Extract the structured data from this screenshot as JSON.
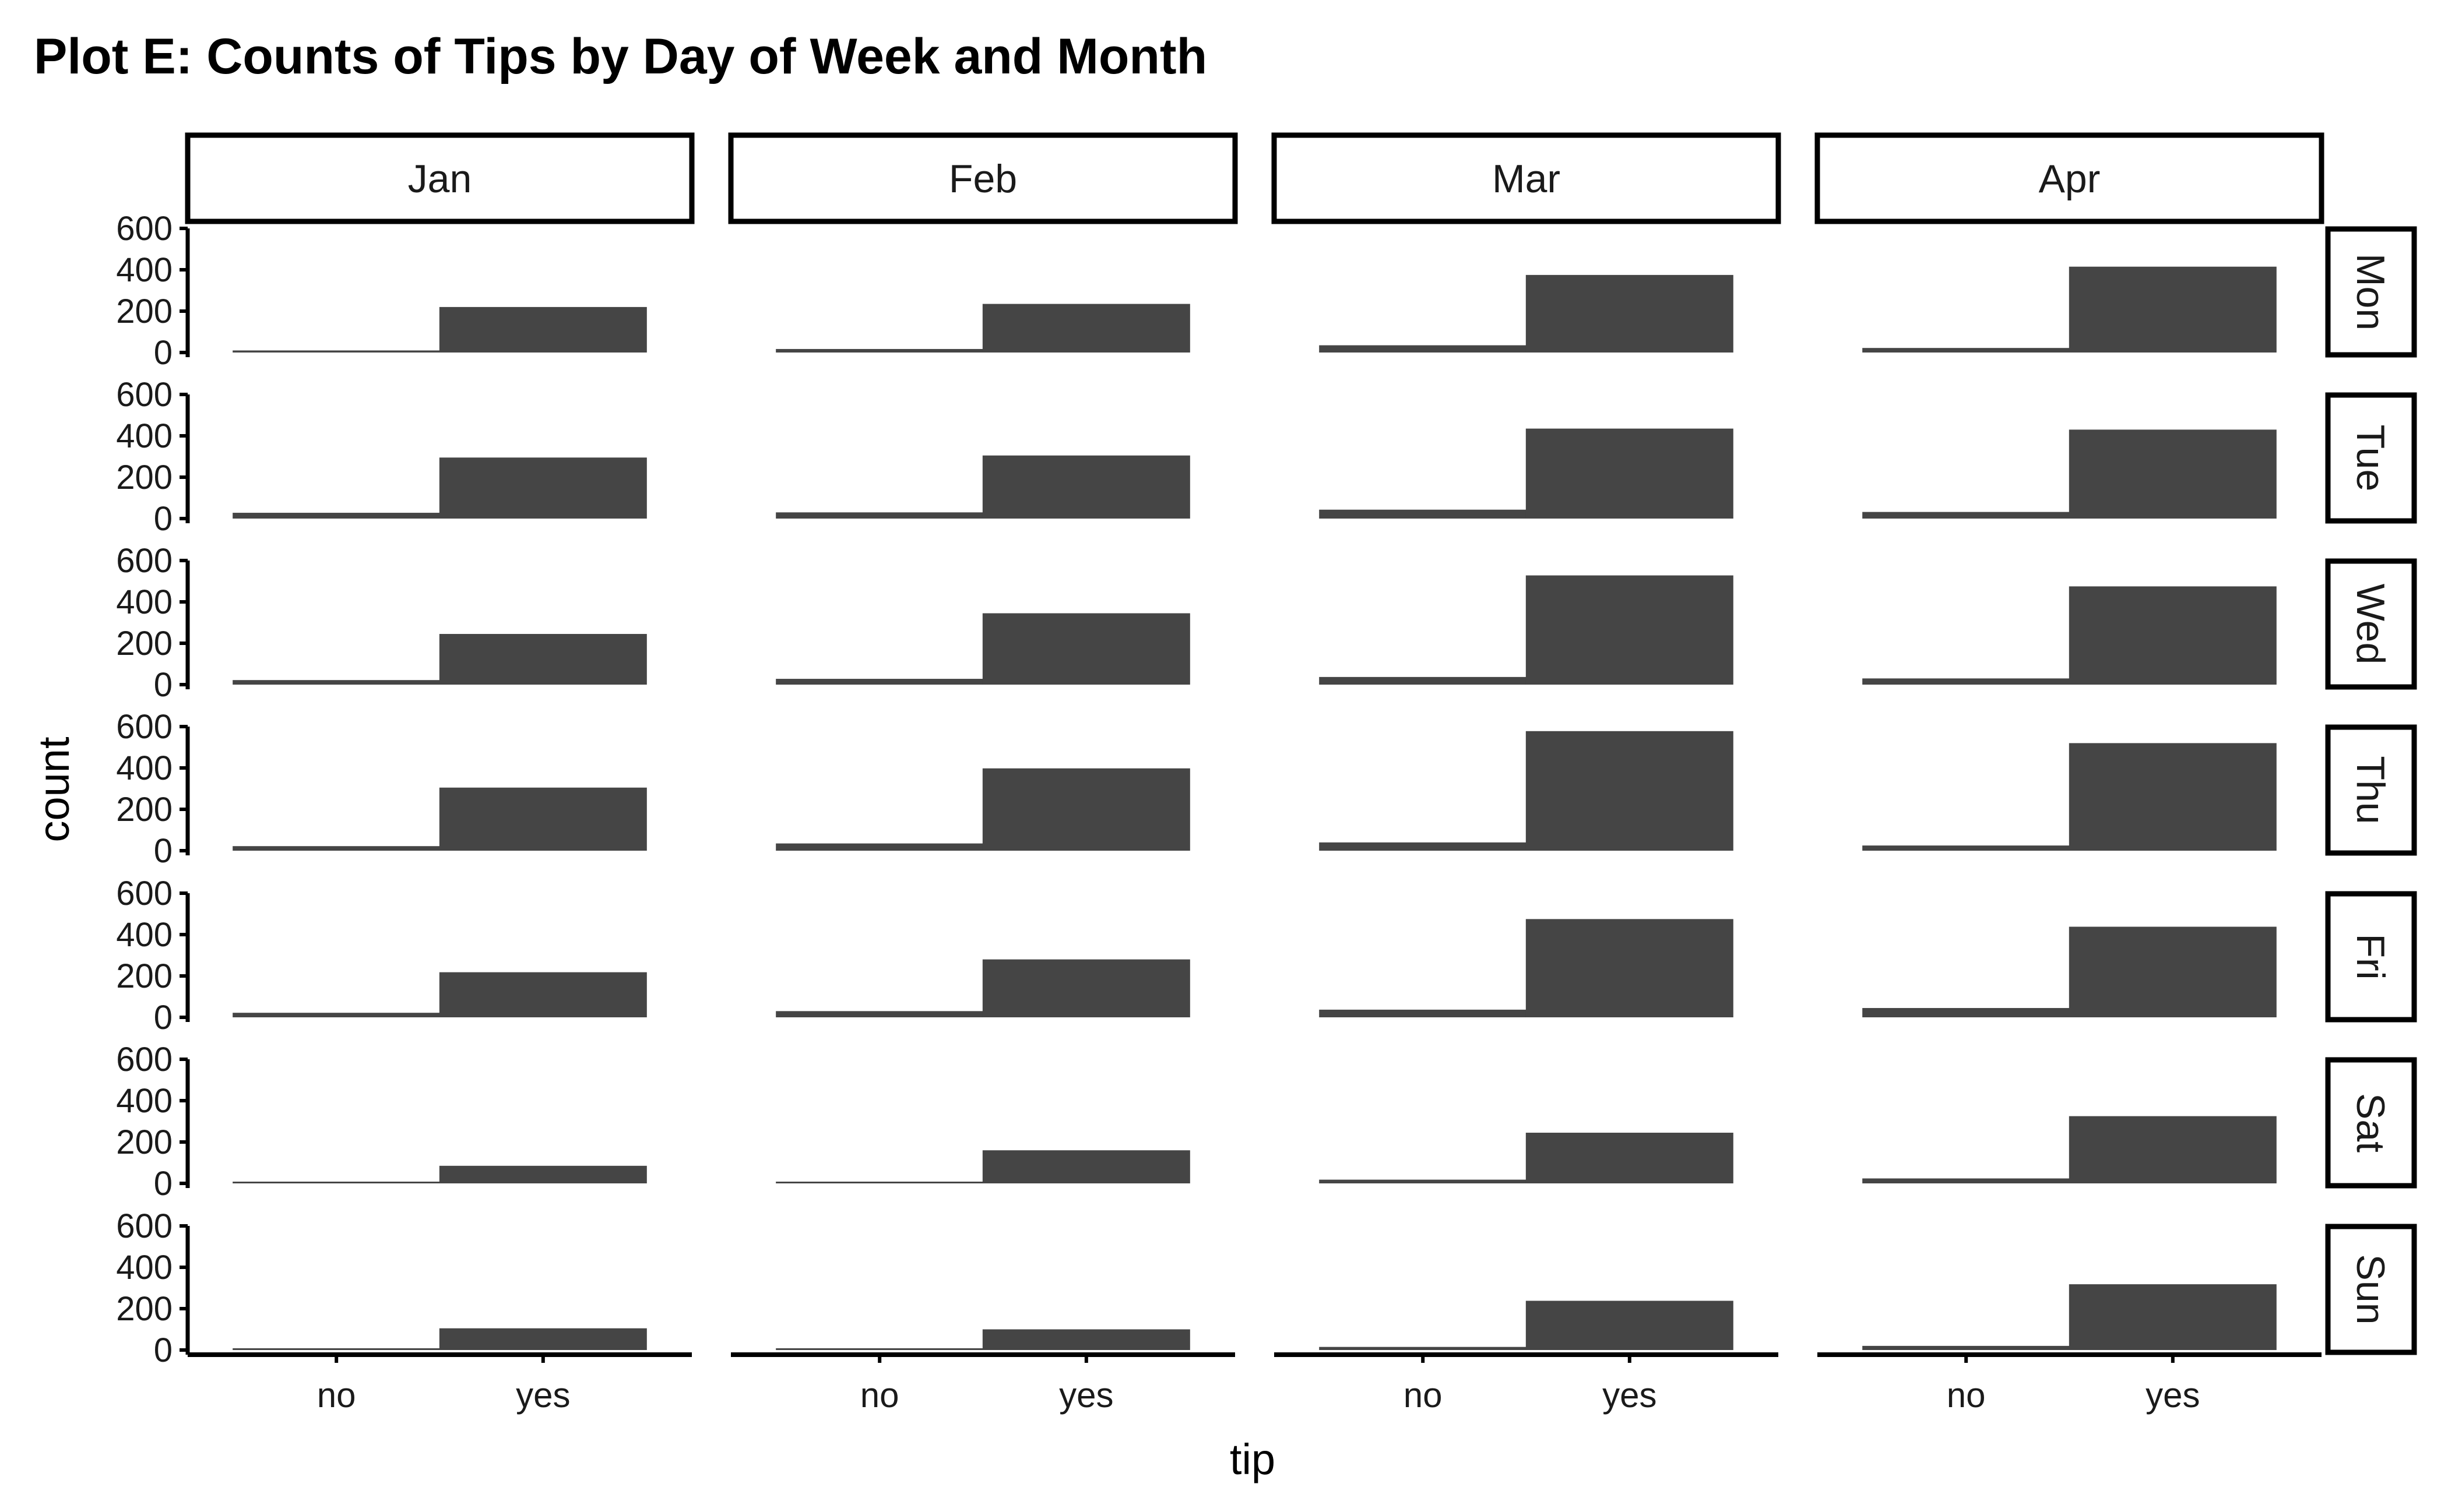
{
  "chart_data": {
    "type": "bar",
    "title": "Plot E: Counts of Tips by Day of Week and Month",
    "xlabel": "tip",
    "ylabel": "count",
    "categories": [
      "no",
      "yes"
    ],
    "ylim": [
      0,
      600
    ],
    "yticks": [
      0,
      200,
      400,
      600
    ],
    "months": [
      "Jan",
      "Feb",
      "Mar",
      "Apr"
    ],
    "days": [
      "Mon",
      "Tue",
      "Wed",
      "Thu",
      "Fri",
      "Sat",
      "Sun"
    ],
    "bar_color": "#454545",
    "grid": false,
    "panels": [
      {
        "month": "Jan",
        "day": "Mon",
        "values": [
          10,
          220
        ]
      },
      {
        "month": "Feb",
        "day": "Mon",
        "values": [
          17,
          235
        ]
      },
      {
        "month": "Mar",
        "day": "Mon",
        "values": [
          35,
          375
        ]
      },
      {
        "month": "Apr",
        "day": "Mon",
        "values": [
          22,
          415
        ]
      },
      {
        "month": "Jan",
        "day": "Tue",
        "values": [
          28,
          295
        ]
      },
      {
        "month": "Feb",
        "day": "Tue",
        "values": [
          30,
          305
        ]
      },
      {
        "month": "Mar",
        "day": "Tue",
        "values": [
          43,
          435
        ]
      },
      {
        "month": "Apr",
        "day": "Tue",
        "values": [
          32,
          430
        ]
      },
      {
        "month": "Jan",
        "day": "Wed",
        "values": [
          22,
          245
        ]
      },
      {
        "month": "Feb",
        "day": "Wed",
        "values": [
          28,
          345
        ]
      },
      {
        "month": "Mar",
        "day": "Wed",
        "values": [
          37,
          528
        ]
      },
      {
        "month": "Apr",
        "day": "Wed",
        "values": [
          30,
          475
        ]
      },
      {
        "month": "Jan",
        "day": "Thu",
        "values": [
          22,
          305
        ]
      },
      {
        "month": "Feb",
        "day": "Thu",
        "values": [
          35,
          398
        ]
      },
      {
        "month": "Mar",
        "day": "Thu",
        "values": [
          40,
          578
        ]
      },
      {
        "month": "Apr",
        "day": "Thu",
        "values": [
          25,
          520
        ]
      },
      {
        "month": "Jan",
        "day": "Fri",
        "values": [
          22,
          218
        ]
      },
      {
        "month": "Feb",
        "day": "Fri",
        "values": [
          30,
          280
        ]
      },
      {
        "month": "Mar",
        "day": "Fri",
        "values": [
          37,
          475
        ]
      },
      {
        "month": "Apr",
        "day": "Fri",
        "values": [
          45,
          438
        ]
      },
      {
        "month": "Jan",
        "day": "Sat",
        "values": [
          5,
          85
        ]
      },
      {
        "month": "Feb",
        "day": "Sat",
        "values": [
          6,
          160
        ]
      },
      {
        "month": "Mar",
        "day": "Sat",
        "values": [
          18,
          245
        ]
      },
      {
        "month": "Apr",
        "day": "Sat",
        "values": [
          24,
          325
        ]
      },
      {
        "month": "Jan",
        "day": "Sun",
        "values": [
          4,
          105
        ]
      },
      {
        "month": "Feb",
        "day": "Sun",
        "values": [
          5,
          100
        ]
      },
      {
        "month": "Mar",
        "day": "Sun",
        "values": [
          15,
          238
        ]
      },
      {
        "month": "Apr",
        "day": "Sun",
        "values": [
          20,
          318
        ]
      }
    ]
  }
}
